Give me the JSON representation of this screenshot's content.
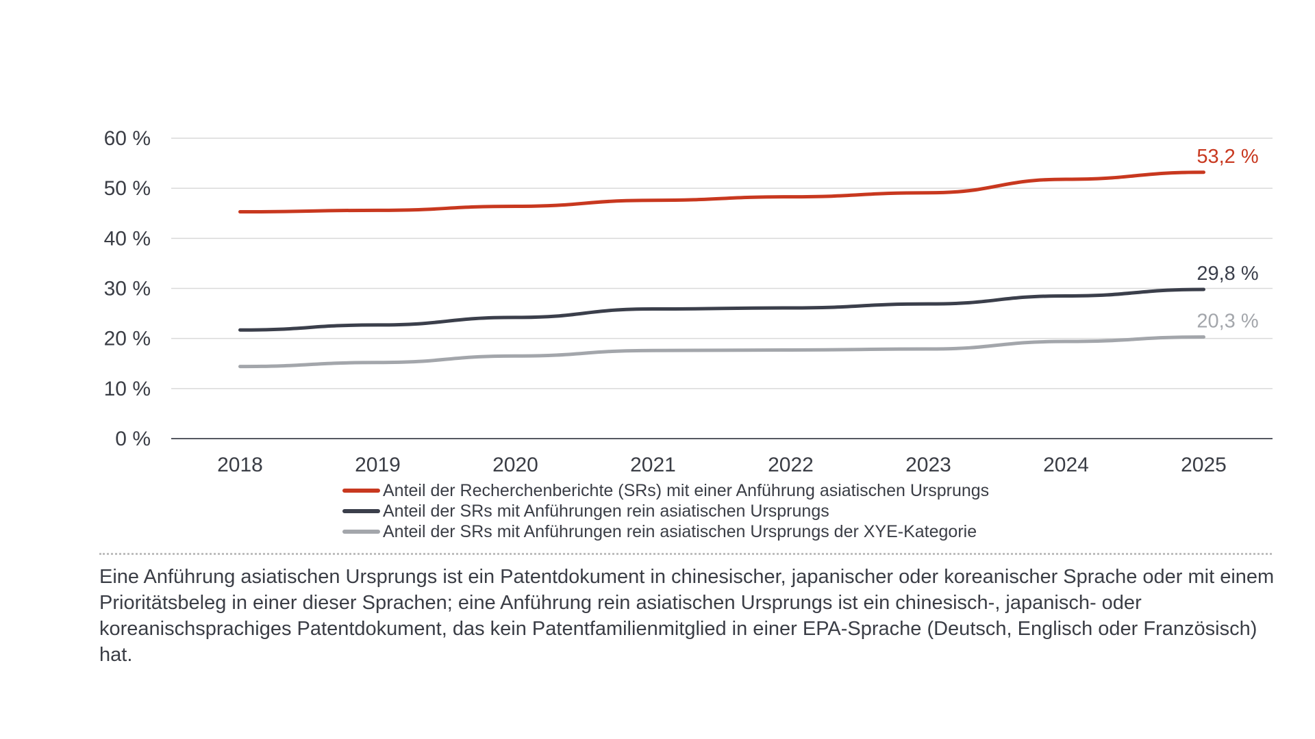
{
  "chart_data": {
    "type": "line",
    "categories": [
      "2018",
      "2019",
      "2020",
      "2021",
      "2022",
      "2023",
      "2024",
      "2025"
    ],
    "y_ticks": [
      "0 %",
      "10 %",
      "20 %",
      "30 %",
      "40 %",
      "50 %",
      "60 %"
    ],
    "ylim": [
      0,
      60
    ],
    "grid": true,
    "legend_position": "bottom",
    "series": [
      {
        "name": "Anteil der Recherchenberichte (SRs) mit einer Anführung asiatischen Ursprungs",
        "color": "#c8381f",
        "values": [
          45.3,
          45.6,
          46.4,
          47.6,
          48.3,
          49.1,
          51.8,
          53.2
        ],
        "end_label": "53,2 %"
      },
      {
        "name": "Anteil der SRs mit Anführungen rein asiatischen Ursprungs",
        "color": "#3b3f4b",
        "values": [
          21.7,
          22.7,
          24.2,
          25.9,
          26.1,
          26.9,
          28.5,
          29.8
        ],
        "end_label": "29,8 %"
      },
      {
        "name": "Anteil der SRs mit Anführungen rein asiatischen Ursprungs der XYE-Kategorie",
        "color": "#a3a6ab",
        "values": [
          14.4,
          15.2,
          16.5,
          17.6,
          17.7,
          17.9,
          19.4,
          20.3
        ],
        "end_label": "20,3 %"
      }
    ]
  },
  "note": "Eine Anführung asiatischen Ursprungs ist ein Patentdokument in chinesischer, japanischer oder koreanischer Sprache oder mit einem Prioritätsbeleg in einer dieser Sprachen; eine Anführung rein asiatischen Ursprungs ist ein chinesisch-, japanisch- oder koreanischsprachiges Patentdokument, das kein Patentfamilienmitglied in einer EPA-Sprache (Deutsch, Englisch oder Französisch) hat."
}
